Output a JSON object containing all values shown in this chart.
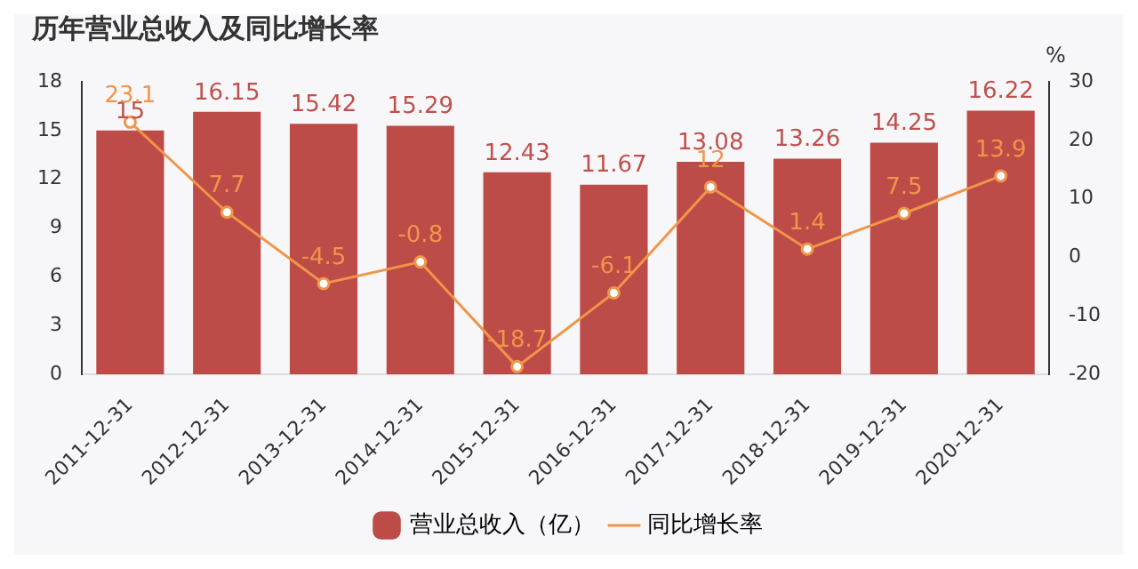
{
  "chart_data": {
    "type": "bar",
    "title": "历年营业总收入及同比增长率",
    "y2label": "%",
    "categories": [
      "2011-12-31",
      "2012-12-31",
      "2013-12-31",
      "2014-12-31",
      "2015-12-31",
      "2016-12-31",
      "2017-12-31",
      "2018-12-31",
      "2019-12-31",
      "2020-12-31"
    ],
    "series": [
      {
        "name": "营业总收入（亿）",
        "color": "#bd4b47",
        "values": [
          15,
          16.15,
          15.42,
          15.29,
          12.43,
          11.67,
          13.08,
          13.26,
          14.25,
          16.22
        ]
      },
      {
        "name": "同比增长率",
        "type": "line",
        "axis": "y2",
        "color": "#f0954a",
        "marker": "circle",
        "values": [
          23.1,
          7.7,
          -4.5,
          -0.8,
          -18.7,
          -6.1,
          12,
          1.4,
          7.5,
          13.9
        ]
      }
    ],
    "ylim": [
      0,
      18
    ],
    "yticks": [
      0,
      3,
      6,
      9,
      12,
      15,
      18
    ],
    "y2lim": [
      -20,
      30
    ],
    "y2ticks": [
      -20,
      -10,
      0,
      10,
      20,
      30
    ],
    "data_labels": true,
    "legend": "bottom",
    "grid": false
  }
}
